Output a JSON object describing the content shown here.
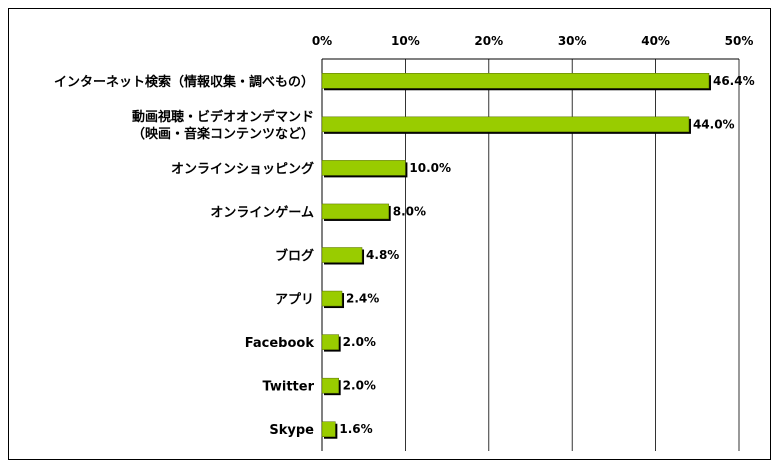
{
  "chart_data": {
    "type": "bar",
    "orientation": "horizontal",
    "categories": [
      [
        "インターネット検索（情報収集・調べもの）"
      ],
      [
        "動画視聴・ビデオオンデマンド",
        "（映画・音楽コンテンツなど）"
      ],
      [
        "オンラインショッピング"
      ],
      [
        "オンラインゲーム"
      ],
      [
        "ブログ"
      ],
      [
        "アプリ"
      ],
      [
        "Facebook"
      ],
      [
        "Twitter"
      ],
      [
        "Skype"
      ]
    ],
    "values": [
      46.4,
      44.0,
      10.0,
      8.0,
      4.8,
      2.4,
      2.0,
      2.0,
      1.6
    ],
    "value_labels": [
      "46.4%",
      "44.0%",
      "10.0%",
      "8.0%",
      "4.8%",
      "2.4%",
      "2.0%",
      "2.0%",
      "1.6%"
    ],
    "x_ticks": [
      0,
      10,
      20,
      30,
      40,
      50
    ],
    "x_tick_labels": [
      "0%",
      "10%",
      "20%",
      "30%",
      "40%",
      "50%"
    ],
    "xlim": [
      0,
      50
    ],
    "grid": true,
    "axis_position": "top",
    "bar_color": "#99cc00",
    "bar_edge_color": "#000000",
    "title": "",
    "xlabel": "",
    "ylabel": ""
  }
}
